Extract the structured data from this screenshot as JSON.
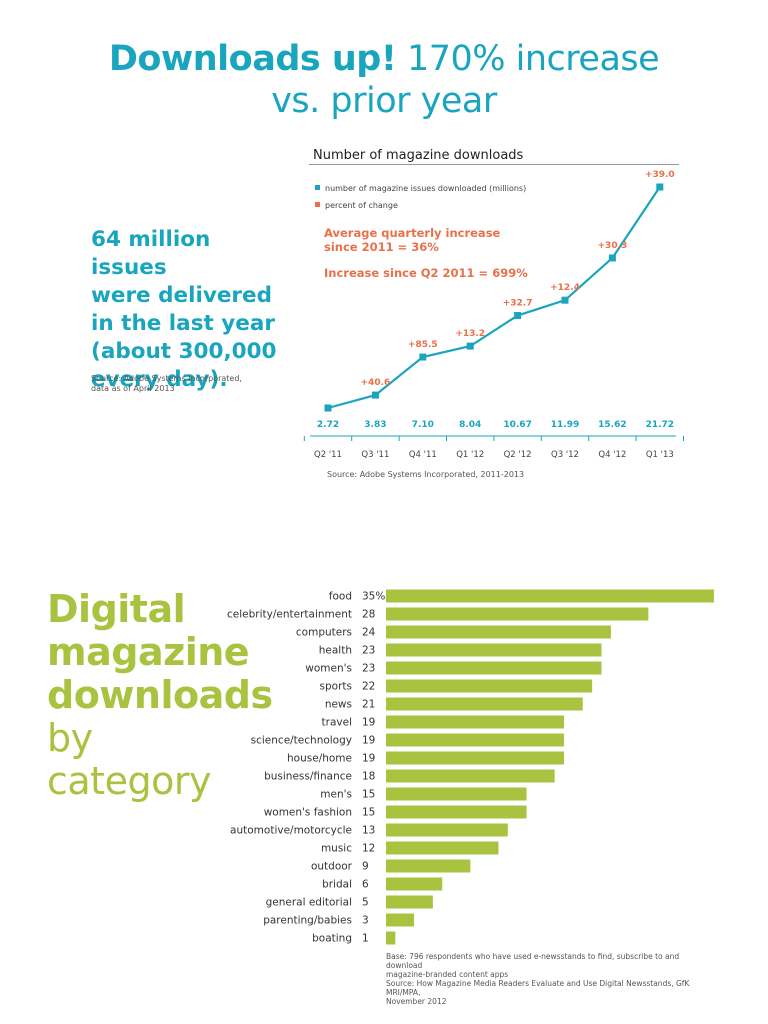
{
  "headline": {
    "bold": "Downloads up!",
    "light_1": "170% increase",
    "light_2": "vs. prior year"
  },
  "callout": {
    "text": "64 million issues\nwere delivered\nin the last year\n(about 300,000\nevery day).",
    "source": "Source: Adobe Systems Incorporated,\ndata as of April 2013"
  },
  "colors": {
    "teal": "#1aa5bf",
    "orange": "#e8704a",
    "green": "#a9c23f"
  },
  "chart_data": [
    {
      "type": "line",
      "title": "Number of magazine downloads",
      "legend": [
        "number of magazine issues downloaded (millions)",
        "percent of change"
      ],
      "notes": [
        "Average quarterly increase\nsince 2011 = 36%",
        "Increase since Q2 2011 = 699%"
      ],
      "categories": [
        "Q2 '11",
        "Q3 '11",
        "Q4 '11",
        "Q1 '12",
        "Q2 '12",
        "Q3 '12",
        "Q4 '12",
        "Q1 '13"
      ],
      "values": [
        2.72,
        3.83,
        7.1,
        8.04,
        10.67,
        11.99,
        15.62,
        21.72
      ],
      "value_labels": [
        "2.72",
        "3.83",
        "7.10",
        "8.04",
        "10.67",
        "11.99",
        "15.62",
        "21.72"
      ],
      "percent_change": [
        null,
        "+40.6",
        "+85.5",
        "+13.2",
        "+32.7",
        "+12.4",
        "+30.3",
        "+39.0"
      ],
      "source": "Source: Adobe Systems Incorporated, 2011-2013"
    },
    {
      "type": "bar",
      "orientation": "horizontal",
      "title_lines": [
        "Digital",
        "magazine",
        "downloads",
        "by",
        "category"
      ],
      "categories": [
        "food",
        "celebrity/entertainment",
        "computers",
        "health",
        "women's",
        "sports",
        "news",
        "travel",
        "science/technology",
        "house/home",
        "business/finance",
        "men's",
        "women's fashion",
        "automotive/motorcycle",
        "music",
        "outdoor",
        "bridal",
        "general editorial",
        "parenting/babies",
        "boating"
      ],
      "values": [
        35,
        28,
        24,
        23,
        23,
        22,
        21,
        19,
        19,
        19,
        18,
        15,
        15,
        13,
        12,
        9,
        6,
        5,
        3,
        1
      ],
      "value_labels": [
        "35%",
        "28",
        "24",
        "23",
        "23",
        "22",
        "21",
        "19",
        "19",
        "19",
        "18",
        "15",
        "15",
        "13",
        "12",
        "9",
        "6",
        "5",
        "3",
        "1"
      ],
      "base_note": "Base: 796 respondents who have used e-newsstands to find, subscribe to and download\nmagazine-branded content apps\nSource: How Magazine Media Readers Evaluate and Use Digital Newsstands, GfK MRI/MPA,\nNovember 2012"
    }
  ]
}
